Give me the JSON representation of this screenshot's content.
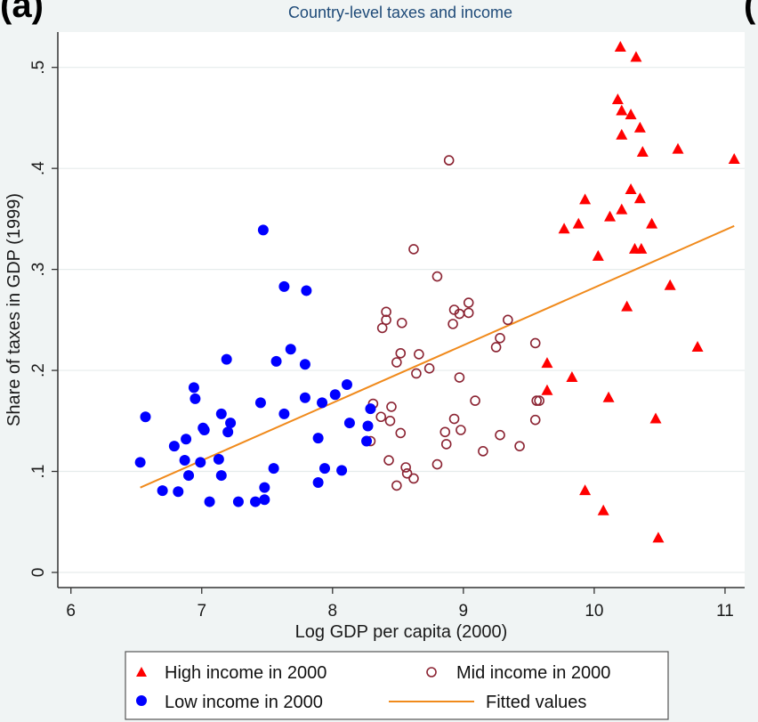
{
  "panel_label": "(a)",
  "panel_label_right": "(",
  "chart_data": {
    "type": "scatter",
    "title": "Country-level taxes and income",
    "xlabel": "Log GDP per capita (2000)",
    "ylabel": "Share of taxes in GDP (1999)",
    "xlim": [
      5.9,
      11.15
    ],
    "ylim": [
      -0.015,
      0.535
    ],
    "xticks": [
      6,
      7,
      8,
      9,
      10,
      11
    ],
    "xtick_labels": [
      "6",
      "7",
      "8",
      "9",
      "10",
      "11"
    ],
    "yticks": [
      0,
      0.1,
      0.2,
      0.3,
      0.4,
      0.5
    ],
    "ytick_labels": [
      "0",
      ".1",
      ".2",
      ".3",
      ".4",
      ".5"
    ],
    "grid": "horizontal",
    "legend_position": "bottom",
    "series": [
      {
        "name": "High income in 2000",
        "marker": "triangle",
        "color": "#ff0000",
        "points": [
          [
            10.2,
            0.52
          ],
          [
            10.32,
            0.51
          ],
          [
            10.18,
            0.468
          ],
          [
            10.21,
            0.457
          ],
          [
            10.28,
            0.453
          ],
          [
            10.35,
            0.44
          ],
          [
            10.21,
            0.433
          ],
          [
            10.37,
            0.416
          ],
          [
            10.64,
            0.419
          ],
          [
            11.07,
            0.409
          ],
          [
            10.28,
            0.379
          ],
          [
            9.93,
            0.369
          ],
          [
            10.35,
            0.37
          ],
          [
            10.21,
            0.359
          ],
          [
            10.12,
            0.352
          ],
          [
            9.88,
            0.345
          ],
          [
            10.44,
            0.345
          ],
          [
            9.77,
            0.34
          ],
          [
            10.31,
            0.32
          ],
          [
            10.36,
            0.32
          ],
          [
            10.03,
            0.313
          ],
          [
            10.58,
            0.284
          ],
          [
            10.25,
            0.263
          ],
          [
            10.79,
            0.223
          ],
          [
            9.64,
            0.207
          ],
          [
            9.83,
            0.193
          ],
          [
            9.64,
            0.18
          ],
          [
            10.11,
            0.173
          ],
          [
            10.47,
            0.152
          ],
          [
            9.93,
            0.081
          ],
          [
            10.07,
            0.061
          ],
          [
            10.49,
            0.034
          ]
        ]
      },
      {
        "name": "Mid income in 2000",
        "marker": "hollow-circle",
        "color": "#8b2332",
        "points": [
          [
            8.89,
            0.408
          ],
          [
            8.62,
            0.32
          ],
          [
            8.8,
            0.293
          ],
          [
            8.41,
            0.258
          ],
          [
            8.41,
            0.25
          ],
          [
            8.53,
            0.247
          ],
          [
            8.93,
            0.26
          ],
          [
            8.97,
            0.256
          ],
          [
            9.04,
            0.257
          ],
          [
            9.04,
            0.267
          ],
          [
            8.92,
            0.246
          ],
          [
            8.38,
            0.242
          ],
          [
            9.34,
            0.25
          ],
          [
            9.25,
            0.223
          ],
          [
            9.28,
            0.232
          ],
          [
            9.55,
            0.227
          ],
          [
            8.52,
            0.217
          ],
          [
            8.66,
            0.216
          ],
          [
            8.49,
            0.208
          ],
          [
            8.74,
            0.202
          ],
          [
            8.64,
            0.197
          ],
          [
            8.97,
            0.193
          ],
          [
            9.09,
            0.17
          ],
          [
            9.56,
            0.17
          ],
          [
            9.58,
            0.17
          ],
          [
            8.31,
            0.167
          ],
          [
            8.45,
            0.164
          ],
          [
            8.37,
            0.154
          ],
          [
            8.44,
            0.15
          ],
          [
            8.93,
            0.152
          ],
          [
            9.55,
            0.151
          ],
          [
            8.52,
            0.138
          ],
          [
            8.98,
            0.141
          ],
          [
            8.86,
            0.139
          ],
          [
            9.28,
            0.136
          ],
          [
            8.29,
            0.13
          ],
          [
            8.87,
            0.127
          ],
          [
            9.43,
            0.125
          ],
          [
            9.15,
            0.12
          ],
          [
            8.43,
            0.111
          ],
          [
            8.8,
            0.107
          ],
          [
            8.56,
            0.104
          ],
          [
            8.57,
            0.098
          ],
          [
            8.62,
            0.093
          ],
          [
            8.49,
            0.086
          ]
        ]
      },
      {
        "name": "Low income in 2000",
        "marker": "circle",
        "color": "#0000ff",
        "points": [
          [
            7.47,
            0.339
          ],
          [
            7.63,
            0.283
          ],
          [
            7.8,
            0.279
          ],
          [
            7.68,
            0.221
          ],
          [
            7.19,
            0.211
          ],
          [
            7.57,
            0.209
          ],
          [
            7.79,
            0.206
          ],
          [
            8.11,
            0.186
          ],
          [
            6.94,
            0.183
          ],
          [
            8.02,
            0.176
          ],
          [
            6.95,
            0.172
          ],
          [
            7.79,
            0.173
          ],
          [
            7.92,
            0.168
          ],
          [
            7.45,
            0.168
          ],
          [
            8.29,
            0.162
          ],
          [
            7.15,
            0.157
          ],
          [
            7.63,
            0.157
          ],
          [
            6.57,
            0.154
          ],
          [
            7.22,
            0.148
          ],
          [
            8.13,
            0.148
          ],
          [
            8.27,
            0.145
          ],
          [
            7.01,
            0.143
          ],
          [
            7.02,
            0.141
          ],
          [
            7.2,
            0.139
          ],
          [
            6.88,
            0.132
          ],
          [
            7.89,
            0.133
          ],
          [
            8.26,
            0.13
          ],
          [
            6.79,
            0.125
          ],
          [
            7.13,
            0.112
          ],
          [
            6.87,
            0.111
          ],
          [
            6.99,
            0.109
          ],
          [
            6.53,
            0.109
          ],
          [
            7.55,
            0.103
          ],
          [
            7.94,
            0.103
          ],
          [
            8.07,
            0.101
          ],
          [
            7.15,
            0.096
          ],
          [
            6.9,
            0.096
          ],
          [
            7.89,
            0.089
          ],
          [
            7.48,
            0.084
          ],
          [
            6.7,
            0.081
          ],
          [
            6.82,
            0.08
          ],
          [
            7.48,
            0.072
          ],
          [
            7.06,
            0.07
          ],
          [
            7.28,
            0.07
          ],
          [
            7.41,
            0.07
          ]
        ]
      },
      {
        "name": "Fitted values",
        "marker": "line",
        "color": "#f08a1c",
        "points": [
          [
            6.53,
            0.084
          ],
          [
            11.07,
            0.343
          ]
        ]
      }
    ]
  },
  "legend": {
    "items": [
      {
        "label": "High income in 2000",
        "marker": "triangle",
        "color": "#ff0000"
      },
      {
        "label": "Mid income in 2000",
        "marker": "hollow-circle",
        "color": "#8b2332"
      },
      {
        "label": "Low income in 2000",
        "marker": "circle",
        "color": "#0000ff"
      },
      {
        "label": "Fitted values",
        "marker": "line",
        "color": "#f08a1c"
      }
    ]
  }
}
